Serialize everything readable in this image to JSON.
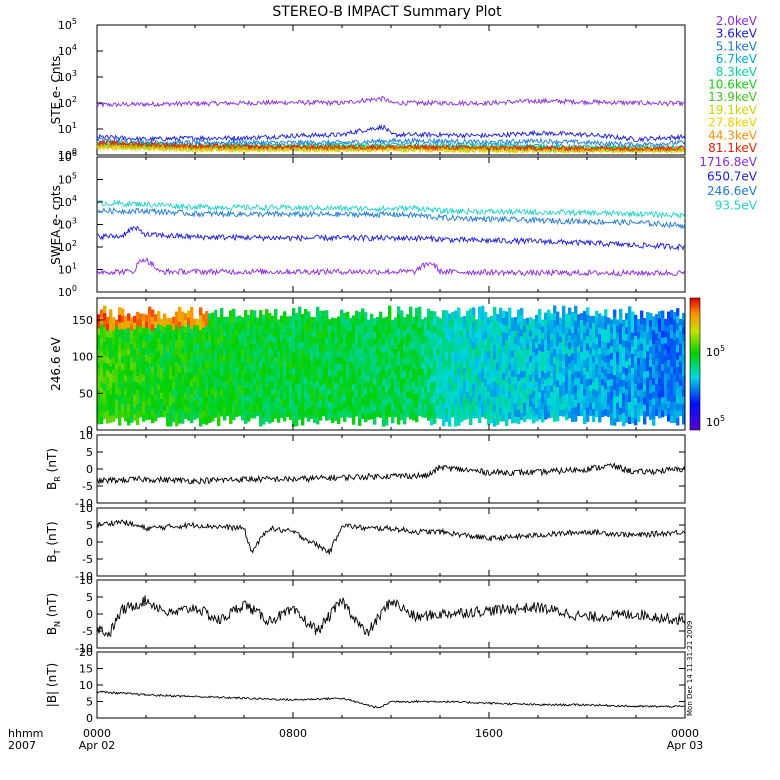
{
  "figure": {
    "title": "STEREO-B IMPACT Summary Plot",
    "x_axis": {
      "ticks": [
        {
          "line1": "0000",
          "line2": "Apr 02"
        },
        {
          "line1": "0800",
          "line2": ""
        },
        {
          "line1": "1600",
          "line2": ""
        },
        {
          "line1": "0000",
          "line2": "Apr 03"
        }
      ],
      "corner_line1": "hhmm",
      "corner_line2": "2007"
    },
    "side_stamp": "Mon Dec 14 11:31:21 2009"
  },
  "chart_data": [
    {
      "id": "ste",
      "type": "line",
      "ylabel": "STE e- Cnts",
      "yscale": "log",
      "ylim": [
        1,
        100000
      ],
      "x_range_hours": [
        0,
        24
      ],
      "yticks": [
        {
          "base": "10",
          "exp": "0"
        },
        {
          "base": "10",
          "exp": "1"
        },
        {
          "base": "10",
          "exp": "2"
        },
        {
          "base": "10",
          "exp": "3"
        },
        {
          "base": "10",
          "exp": "4"
        },
        {
          "base": "10",
          "exp": "5"
        }
      ],
      "series": [
        {
          "name": "2.0keV",
          "color": "#8a2be2",
          "x": [
            0,
            2,
            4,
            6,
            8,
            10,
            11.7,
            12,
            14,
            16,
            18,
            20,
            22,
            24
          ],
          "values": [
            85,
            90,
            95,
            100,
            105,
            100,
            150,
            100,
            100,
            100,
            120,
            110,
            100,
            95
          ]
        },
        {
          "name": "3.6keV",
          "color": "#1a1adc",
          "x": [
            0,
            2,
            4,
            6,
            8,
            10,
            11.7,
            12,
            14,
            16,
            18,
            20,
            22,
            24
          ],
          "values": [
            5,
            4,
            4.5,
            4.5,
            5.5,
            6,
            12,
            6,
            6,
            5.5,
            7,
            6,
            4,
            5
          ]
        },
        {
          "name": "5.1keV",
          "color": "#1e78d2",
          "x": [
            0,
            2,
            4,
            6,
            8,
            10,
            12,
            14,
            16,
            18,
            20,
            22,
            24
          ],
          "values": [
            4,
            3,
            3,
            3,
            3,
            3,
            3.5,
            3.5,
            3,
            3.5,
            3,
            2.5,
            3
          ]
        },
        {
          "name": "6.7keV",
          "color": "#00aad2",
          "x": [
            0,
            4,
            8,
            12,
            16,
            20,
            24
          ],
          "values": [
            3,
            2.5,
            2.5,
            2.5,
            2.5,
            2,
            2
          ]
        },
        {
          "name": "8.3keV",
          "color": "#00d2a0",
          "x": [
            0,
            4,
            8,
            12,
            16,
            20,
            24
          ],
          "values": [
            2.5,
            2,
            2,
            2,
            2,
            1.8,
            1.8
          ]
        },
        {
          "name": "10.6keV",
          "color": "#10d010",
          "x": [
            0,
            4,
            8,
            12,
            16,
            20,
            24
          ],
          "values": [
            2.5,
            2,
            2,
            2,
            1.9,
            1.7,
            1.7
          ]
        },
        {
          "name": "13.9keV",
          "color": "#40c020",
          "x": [
            0,
            4,
            8,
            12,
            16,
            20,
            24
          ],
          "values": [
            2.2,
            1.8,
            1.8,
            1.8,
            1.7,
            1.6,
            1.6
          ]
        },
        {
          "name": "19.1keV",
          "color": "#c8d200",
          "x": [
            0,
            4,
            8,
            12,
            16,
            20,
            24
          ],
          "values": [
            2,
            1.6,
            1.6,
            1.6,
            1.5,
            1.5,
            1.5
          ]
        },
        {
          "name": "27.8keV",
          "color": "#f0d000",
          "x": [
            0,
            4,
            8,
            12,
            16,
            20,
            24
          ],
          "values": [
            2,
            1.6,
            1.6,
            1.6,
            1.5,
            1.5,
            1.5
          ]
        },
        {
          "name": "44.3keV",
          "color": "#ff9000",
          "x": [
            0,
            4,
            8,
            12,
            16,
            20,
            24
          ],
          "values": [
            2.5,
            2,
            1.9,
            1.9,
            1.8,
            1.7,
            1.7
          ]
        },
        {
          "name": "81.1keV",
          "color": "#e02000",
          "x": [
            0,
            4,
            8,
            12,
            16,
            20,
            24
          ],
          "values": [
            3,
            2.2,
            2,
            2,
            1.9,
            1.8,
            1.8
          ]
        }
      ]
    },
    {
      "id": "swea",
      "type": "line",
      "ylabel": "SWEA e- cnts",
      "yscale": "log",
      "ylim": [
        1,
        1000000
      ],
      "x_range_hours": [
        0,
        24
      ],
      "yticks": [
        {
          "base": "10",
          "exp": "0"
        },
        {
          "base": "10",
          "exp": "1"
        },
        {
          "base": "10",
          "exp": "2"
        },
        {
          "base": "10",
          "exp": "3"
        },
        {
          "base": "10",
          "exp": "4"
        },
        {
          "base": "10",
          "exp": "5"
        },
        {
          "base": "10",
          "exp": "6"
        }
      ],
      "series": [
        {
          "name": "1716.8eV",
          "color": "#8a2be2",
          "x": [
            0,
            1.5,
            1.9,
            2.5,
            6,
            10,
            13,
            13.6,
            14,
            18,
            22,
            24
          ],
          "values": [
            8,
            8,
            30,
            8,
            8,
            8,
            8,
            20,
            8,
            7,
            7,
            7
          ]
        },
        {
          "name": "650.7eV",
          "color": "#1a1adc",
          "x": [
            0,
            1,
            1.5,
            2,
            4,
            8,
            10,
            12,
            13,
            15,
            18,
            20,
            22,
            24
          ],
          "values": [
            300,
            300,
            700,
            350,
            280,
            250,
            250,
            250,
            250,
            200,
            180,
            150,
            120,
            100
          ]
        },
        {
          "name": "246.6eV",
          "color": "#1e78d2",
          "x": [
            0,
            2,
            4,
            8,
            12,
            13,
            14,
            18,
            22,
            24
          ],
          "values": [
            4000,
            4000,
            3000,
            2800,
            2800,
            2600,
            2000,
            1500,
            1200,
            900
          ]
        },
        {
          "name": "93.5eV",
          "color": "#20d2c8",
          "x": [
            0,
            2,
            4,
            8,
            12,
            13,
            14,
            18,
            22,
            24
          ],
          "values": [
            9000,
            8000,
            6000,
            5500,
            5000,
            5500,
            4000,
            3500,
            3000,
            2500
          ]
        }
      ]
    },
    {
      "id": "pad",
      "type": "heatmap",
      "ylabel": "246.6 eV",
      "ylim": [
        0,
        180
      ],
      "x_range_hours": [
        0,
        24
      ],
      "yticks": [
        "0",
        "50",
        "100",
        "150"
      ],
      "colorbar": {
        "scale": "log",
        "ticks": [
          {
            "base": "10",
            "exp": "5"
          },
          {
            "base": "10",
            "exp": "5"
          }
        ]
      }
    },
    {
      "id": "br",
      "type": "line",
      "ylabel": "B",
      "ylabel_sub": "R",
      "ylabel_unit": "(nT)",
      "ylim": [
        -10,
        10
      ],
      "yticks": [
        "-10",
        "-5",
        "0",
        "5",
        "10"
      ],
      "x_range_hours": [
        0,
        24
      ],
      "series": [
        {
          "name": "",
          "color": "#000000",
          "x": [
            0,
            2,
            4,
            6,
            8,
            10,
            12,
            13.5,
            14,
            16,
            18,
            20,
            21,
            22,
            24
          ],
          "values": [
            -3.5,
            -3,
            -3.5,
            -3,
            -3,
            -2.5,
            -2,
            -2,
            0.5,
            -1,
            -1,
            0,
            1,
            -1,
            0
          ]
        }
      ]
    },
    {
      "id": "bt",
      "type": "line",
      "ylabel": "B",
      "ylabel_sub": "T",
      "ylabel_unit": "(nT)",
      "ylim": [
        -10,
        10
      ],
      "yticks": [
        "-10",
        "-5",
        "0",
        "5",
        "10"
      ],
      "x_range_hours": [
        0,
        24
      ],
      "series": [
        {
          "name": "",
          "color": "#000000",
          "x": [
            0,
            1,
            2,
            4,
            6,
            6.3,
            7,
            8,
            9.5,
            10,
            11,
            12,
            13,
            14,
            16,
            18,
            20,
            22,
            24
          ],
          "values": [
            5,
            6,
            4,
            5,
            4,
            -3,
            4,
            3,
            -3,
            5,
            4,
            4,
            3,
            3,
            1,
            2,
            3,
            2,
            3
          ]
        }
      ]
    },
    {
      "id": "bn",
      "type": "line",
      "ylabel": "B",
      "ylabel_sub": "N",
      "ylabel_unit": "(nT)",
      "ylim": [
        -10,
        10
      ],
      "yticks": [
        "-10",
        "-5",
        "0",
        "5",
        "10"
      ],
      "x_range_hours": [
        0,
        24
      ],
      "series": [
        {
          "name": "",
          "color": "#000000",
          "x": [
            0,
            0.5,
            1,
            2,
            3,
            4,
            5,
            6,
            7,
            8,
            9,
            10,
            11,
            12,
            13,
            14,
            16,
            18,
            20,
            22,
            24
          ],
          "values": [
            -4,
            -6,
            1,
            4,
            0,
            2,
            -2,
            3,
            -2,
            1,
            -5,
            4,
            -6,
            4,
            -1,
            0,
            1,
            2,
            -1,
            0,
            -2
          ]
        }
      ]
    },
    {
      "id": "bmag",
      "type": "line",
      "ylabel": "|B| (nT)",
      "ylim": [
        0,
        20
      ],
      "yticks": [
        "0",
        "5",
        "10",
        "15",
        "20"
      ],
      "x_range_hours": [
        0,
        24
      ],
      "series": [
        {
          "name": "",
          "color": "#000000",
          "x": [
            0,
            1,
            2,
            4,
            6,
            8,
            10,
            11.5,
            12,
            14,
            16,
            18,
            20,
            22,
            24
          ],
          "values": [
            8,
            7.5,
            7,
            6.5,
            6,
            5.5,
            6,
            3,
            5,
            5,
            4.5,
            4,
            4,
            3.5,
            3.5
          ]
        }
      ]
    }
  ]
}
